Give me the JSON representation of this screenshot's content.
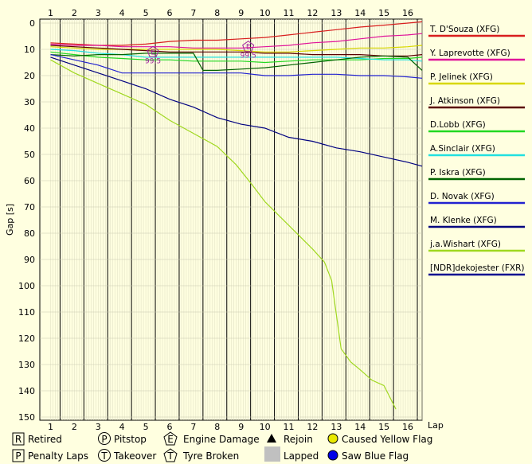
{
  "chart_data": {
    "type": "line",
    "xlabel": "Lap",
    "ylabel": "Gap [s]",
    "x": [
      1,
      16.6
    ],
    "x_ticks": [
      1,
      2,
      3,
      4,
      5,
      6,
      7,
      8,
      9,
      10,
      11,
      12,
      13,
      14,
      15,
      16
    ],
    "y_ticks": [
      0,
      10,
      20,
      30,
      40,
      50,
      60,
      70,
      80,
      90,
      100,
      110,
      120,
      130,
      140,
      150
    ],
    "ylim": [
      0,
      150
    ],
    "grid": true,
    "legend_position": "right",
    "series": [
      {
        "name": "T. D'Souza (XFG)",
        "color": "#d81e1e",
        "points": [
          [
            1,
            7.5
          ],
          [
            2,
            8
          ],
          [
            3,
            8.5
          ],
          [
            4,
            8.5
          ],
          [
            5,
            8
          ],
          [
            6,
            7
          ],
          [
            7,
            6.5
          ],
          [
            8,
            6.5
          ],
          [
            9,
            6
          ],
          [
            10,
            5.5
          ],
          [
            11,
            4.5
          ],
          [
            12,
            3.5
          ],
          [
            13,
            2.5
          ],
          [
            14,
            1.5
          ],
          [
            15,
            0.8
          ],
          [
            16,
            0
          ],
          [
            16.6,
            -0.5
          ]
        ]
      },
      {
        "name": "Y. Laprevotte (XFG)",
        "color": "#e0149a",
        "points": [
          [
            1,
            8
          ],
          [
            2,
            8.5
          ],
          [
            3,
            8.5
          ],
          [
            4,
            9
          ],
          [
            5,
            9
          ],
          [
            6,
            9
          ],
          [
            7,
            9.5
          ],
          [
            8,
            9.5
          ],
          [
            9,
            9.5
          ],
          [
            10,
            9
          ],
          [
            11,
            8.5
          ],
          [
            12,
            7.5
          ],
          [
            13,
            7
          ],
          [
            14,
            6
          ],
          [
            15,
            5
          ],
          [
            16,
            4.5
          ],
          [
            16.6,
            4
          ]
        ]
      },
      {
        "name": "P. Jelinek (XFG)",
        "color": "#d8d800",
        "points": [
          [
            1,
            9
          ],
          [
            2,
            9.5
          ],
          [
            3,
            10
          ],
          [
            4,
            10
          ],
          [
            5,
            10
          ],
          [
            6,
            10
          ],
          [
            7,
            10
          ],
          [
            8,
            10
          ],
          [
            9,
            10.5
          ],
          [
            10,
            11
          ],
          [
            11,
            11
          ],
          [
            12,
            10.5
          ],
          [
            13,
            10
          ],
          [
            14,
            9.5
          ],
          [
            15,
            9.5
          ],
          [
            16,
            9
          ],
          [
            16.6,
            8.5
          ]
        ]
      },
      {
        "name": "J. Atkinson (XFG)",
        "color": "#5a0000",
        "points": [
          [
            1,
            8.5
          ],
          [
            2,
            9
          ],
          [
            3,
            9.5
          ],
          [
            4,
            10
          ],
          [
            5,
            10.5
          ],
          [
            6,
            11
          ],
          [
            7,
            11
          ],
          [
            8,
            11
          ],
          [
            9,
            11
          ],
          [
            10,
            11.5
          ],
          [
            11,
            11.5
          ],
          [
            12,
            12
          ],
          [
            13,
            12
          ],
          [
            14,
            12
          ],
          [
            15,
            12.5
          ],
          [
            16,
            12.5
          ],
          [
            16.6,
            12
          ]
        ]
      },
      {
        "name": "D.Lobb (XFG)",
        "color": "#22d822",
        "points": [
          [
            1,
            11
          ],
          [
            2,
            12
          ],
          [
            3,
            13
          ],
          [
            4,
            13.5
          ],
          [
            5,
            14
          ],
          [
            6,
            14
          ],
          [
            7,
            14.5
          ],
          [
            8,
            14.5
          ],
          [
            9,
            14.5
          ],
          [
            10,
            15
          ],
          [
            11,
            14.5
          ],
          [
            12,
            14
          ],
          [
            13,
            14
          ],
          [
            14,
            14
          ],
          [
            15,
            13.5
          ],
          [
            16,
            13.5
          ],
          [
            16.6,
            13
          ]
        ]
      },
      {
        "name": "A.Sinclair (XFG)",
        "color": "#22e0e0",
        "points": [
          [
            1,
            10
          ],
          [
            2,
            10.5
          ],
          [
            3,
            11.5
          ],
          [
            4,
            12
          ],
          [
            5,
            13
          ],
          [
            6,
            13
          ],
          [
            7,
            13
          ],
          [
            8,
            13
          ],
          [
            9,
            13
          ],
          [
            10,
            13
          ],
          [
            11,
            13
          ],
          [
            12,
            13
          ],
          [
            13,
            13
          ],
          [
            14,
            13.5
          ],
          [
            15,
            14
          ],
          [
            16,
            14
          ],
          [
            16.6,
            14.5
          ]
        ]
      },
      {
        "name": "P. Iskra (XFG)",
        "color": "#006400",
        "points": [
          [
            1,
            12
          ],
          [
            2,
            12.5
          ],
          [
            3,
            12
          ],
          [
            4,
            12
          ],
          [
            5,
            11.5
          ],
          [
            6,
            11.5
          ],
          [
            7,
            11.5
          ],
          [
            7.4,
            18
          ],
          [
            8,
            18
          ],
          [
            9,
            17.5
          ],
          [
            10,
            17
          ],
          [
            11,
            16
          ],
          [
            12,
            15
          ],
          [
            13,
            14
          ],
          [
            14,
            13
          ],
          [
            15,
            12.5
          ],
          [
            16,
            13
          ],
          [
            16.6,
            18
          ]
        ]
      },
      {
        "name": "D. Novak (XFG)",
        "color": "#2222d0",
        "points": [
          [
            1,
            12
          ],
          [
            2,
            14
          ],
          [
            3,
            16
          ],
          [
            4,
            19
          ],
          [
            5,
            19
          ],
          [
            6,
            19
          ],
          [
            7,
            19
          ],
          [
            8,
            19
          ],
          [
            9,
            19
          ],
          [
            10,
            20
          ],
          [
            11,
            20
          ],
          [
            12,
            19.5
          ],
          [
            13,
            19.5
          ],
          [
            14,
            20
          ],
          [
            15,
            20
          ],
          [
            16,
            20.5
          ],
          [
            16.6,
            21
          ]
        ]
      },
      {
        "name": "M. Klenke (XFG)",
        "color": "#000080",
        "points": [
          [
            1,
            13
          ],
          [
            2,
            16
          ],
          [
            3,
            19
          ],
          [
            4,
            22
          ],
          [
            5,
            25
          ],
          [
            6,
            29
          ],
          [
            7,
            32
          ],
          [
            8,
            36
          ],
          [
            9,
            38.5
          ],
          [
            10,
            40
          ],
          [
            11,
            43.5
          ],
          [
            12,
            45
          ],
          [
            13,
            47.5
          ],
          [
            14,
            49
          ],
          [
            15,
            51
          ],
          [
            16,
            53
          ],
          [
            16.6,
            54.5
          ]
        ]
      },
      {
        "name": "j.a.Wishart (XFG)",
        "color": "#a0d820",
        "points": [
          [
            1,
            14
          ],
          [
            2,
            19
          ],
          [
            3,
            23
          ],
          [
            4,
            27
          ],
          [
            5,
            31
          ],
          [
            6,
            37
          ],
          [
            7,
            42
          ],
          [
            8,
            47
          ],
          [
            8.8,
            54
          ],
          [
            9.5,
            62
          ],
          [
            10,
            68
          ],
          [
            11,
            77
          ],
          [
            12,
            86
          ],
          [
            12.5,
            91
          ],
          [
            12.8,
            98
          ],
          [
            13.2,
            124
          ],
          [
            13.6,
            129
          ],
          [
            14,
            132
          ],
          [
            14.5,
            136
          ],
          [
            15,
            138
          ],
          [
            15.5,
            147
          ]
        ]
      },
      {
        "name": "[NDR]dekojester (FXR)",
        "color": "#000090",
        "points": []
      }
    ],
    "markers": [
      {
        "symbol": "E",
        "lap": 5.3,
        "gap": 11,
        "value": "99.5"
      },
      {
        "symbol": "E",
        "lap": 9.3,
        "gap": 9,
        "value": "99.5"
      }
    ]
  },
  "legend": {
    "retired": {
      "symbol": "R",
      "label": "Retired"
    },
    "penalty_laps": {
      "symbol": "P",
      "label": "Penalty Laps"
    },
    "pitstop": {
      "symbol": "P",
      "label": "Pitstop"
    },
    "takeover": {
      "symbol": "T",
      "label": "Takeover"
    },
    "engine_damage": {
      "symbol": "E",
      "label": "Engine Damage"
    },
    "tyre_broken": {
      "symbol": "T",
      "label": "Tyre Broken"
    },
    "rejoin": {
      "label": "Rejoin"
    },
    "lapped": {
      "label": "Lapped"
    },
    "caused_yellow_flag": {
      "label": "Caused Yellow Flag"
    },
    "saw_blue_flag": {
      "label": "Saw Blue Flag"
    }
  }
}
